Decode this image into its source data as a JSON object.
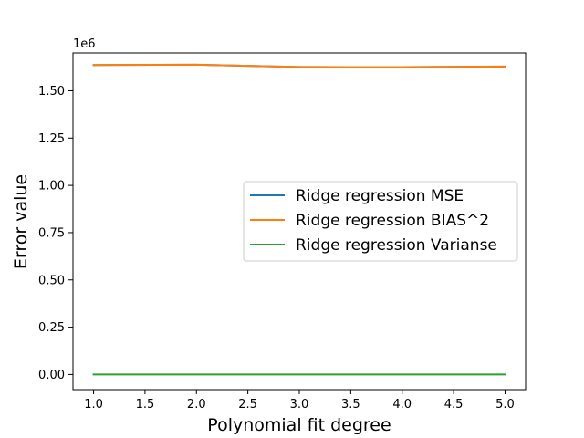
{
  "chart_data": {
    "type": "line",
    "title": "",
    "xlabel": "Polynomial fit degree",
    "ylabel": "Error value",
    "y_offset_label": "1e6",
    "xlim": [
      0.8,
      5.2
    ],
    "ylim": [
      -0.08,
      1.7
    ],
    "x_ticks": [
      1.0,
      1.5,
      2.0,
      2.5,
      3.0,
      3.5,
      4.0,
      4.5,
      5.0
    ],
    "x_tick_labels": [
      "1.0",
      "1.5",
      "2.0",
      "2.5",
      "3.0",
      "3.5",
      "4.0",
      "4.5",
      "5.0"
    ],
    "y_ticks": [
      0.0,
      0.25,
      0.5,
      0.75,
      1.0,
      1.25,
      1.5
    ],
    "y_tick_labels": [
      "0.00",
      "0.25",
      "0.50",
      "0.75",
      "1.00",
      "1.25",
      "1.50"
    ],
    "grid": false,
    "legend_position": "center-right",
    "x": [
      1,
      2,
      3,
      4,
      5
    ],
    "series": [
      {
        "name": "Ridge regression MSE",
        "color": "#1f77b4",
        "values": [
          1.636,
          1.638,
          1.626,
          1.625,
          1.628
        ]
      },
      {
        "name": "Ridge regression BIAS^2",
        "color": "#ff7f0e",
        "values": [
          1.636,
          1.638,
          1.626,
          1.625,
          1.628
        ]
      },
      {
        "name": "Ridge regression Varianse",
        "color": "#2ca02c",
        "values": [
          0.0,
          0.0,
          0.0,
          0.0,
          0.0
        ]
      }
    ]
  }
}
